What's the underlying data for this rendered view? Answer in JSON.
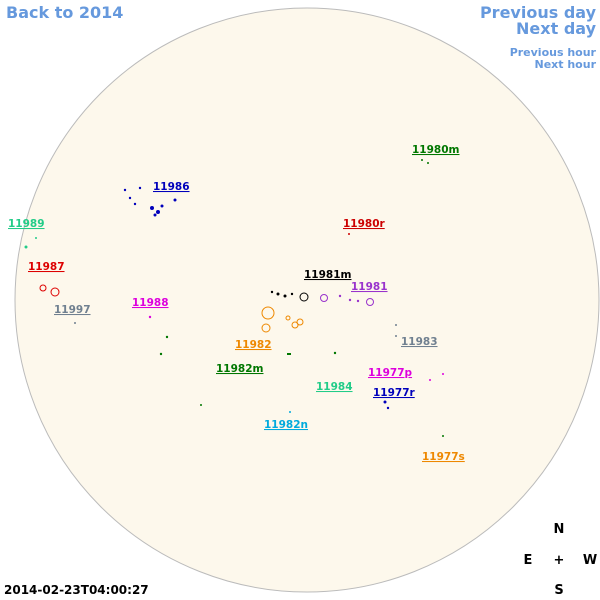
{
  "navigation": {
    "back": "Back to 2014",
    "previous_day": "Previous day",
    "next_day": "Next day",
    "previous_hour": "Previous hour",
    "next_hour": "Next hour"
  },
  "timestamp": "2014-02-23T04:00:27",
  "compass": {
    "north": "N",
    "east": "E",
    "center": "+",
    "west": "W",
    "south": "S"
  },
  "regions": [
    {
      "name": "11980m",
      "color": "#007700"
    },
    {
      "name": "11986",
      "color": "#0000bb"
    },
    {
      "name": "11989",
      "color": "#22cc88"
    },
    {
      "name": "11980r",
      "color": "#cc0000"
    },
    {
      "name": "11987",
      "color": "#dd0000"
    },
    {
      "name": "11981m",
      "color": "#000000"
    },
    {
      "name": "11988",
      "color": "#dd00dd"
    },
    {
      "name": "11981",
      "color": "#9933cc"
    },
    {
      "name": "11997",
      "color": "#708090"
    },
    {
      "name": "11982",
      "color": "#ee8800"
    },
    {
      "name": "11983",
      "color": "#708090"
    },
    {
      "name": "11982m",
      "color": "#007700"
    },
    {
      "name": "11977p",
      "color": "#dd00dd"
    },
    {
      "name": "11984",
      "color": "#22cc88"
    },
    {
      "name": "11977r",
      "color": "#0000bb"
    },
    {
      "name": "11982n",
      "color": "#00aadd"
    },
    {
      "name": "11977s",
      "color": "#ee8800"
    }
  ]
}
